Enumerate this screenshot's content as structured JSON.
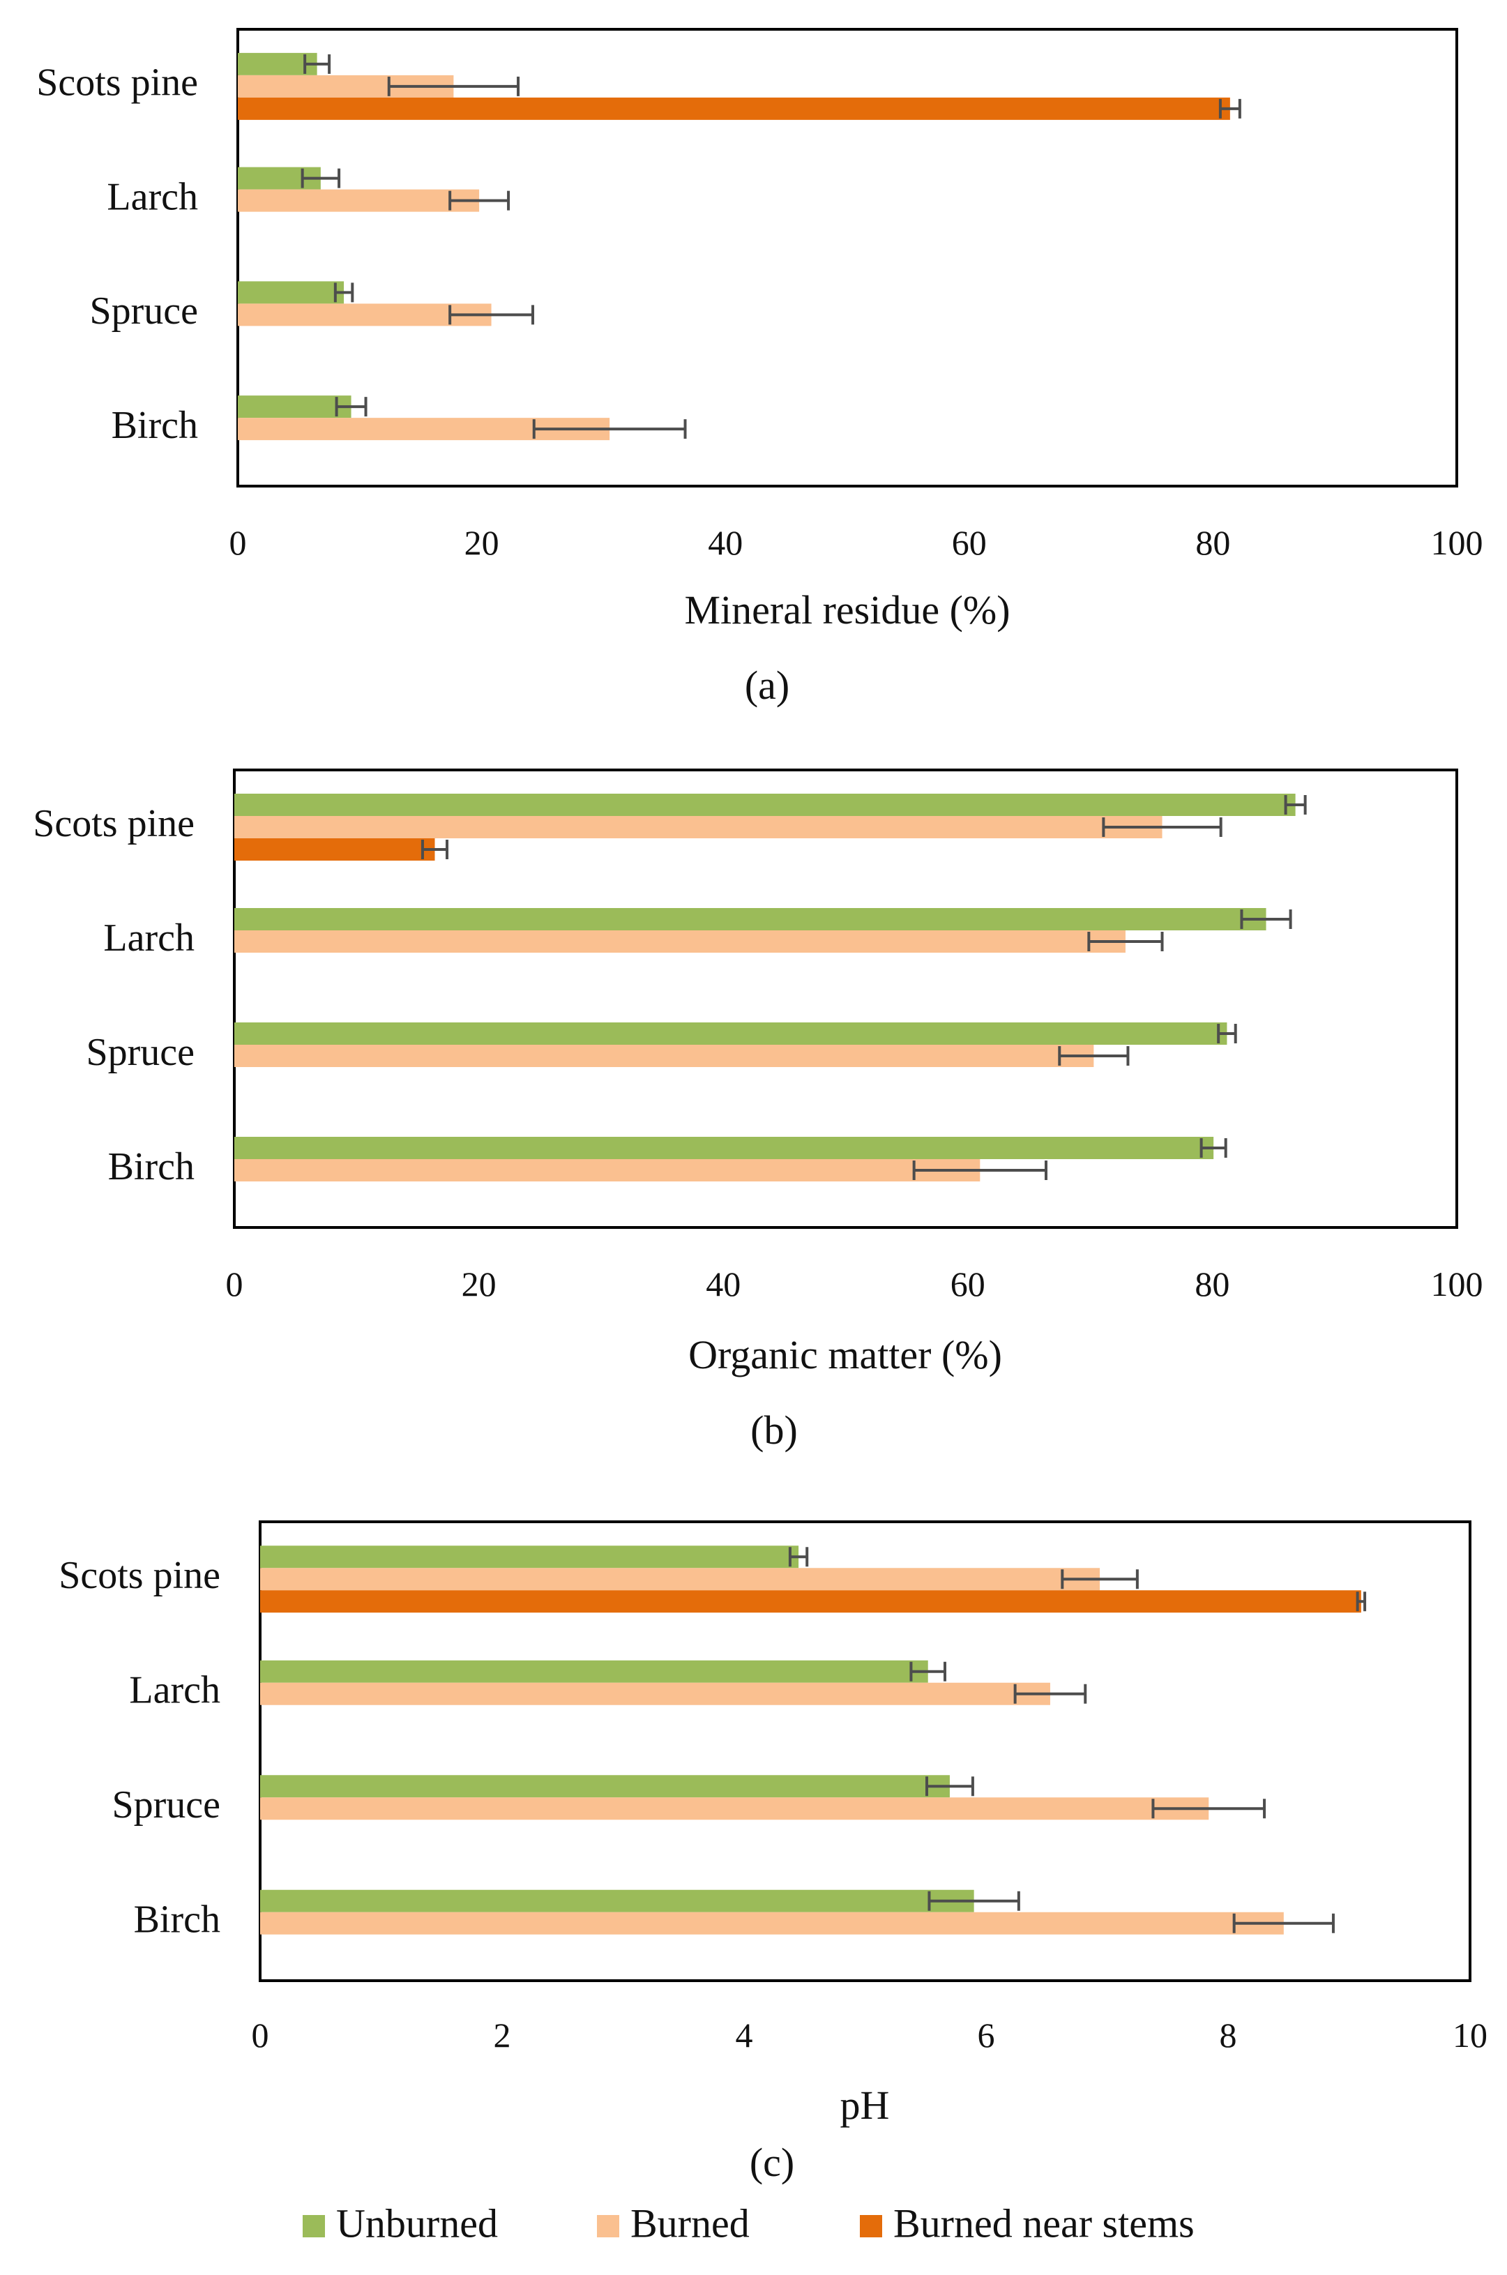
{
  "figure": {
    "legend": [
      {
        "label": "Unburned",
        "color": "#9bbb59"
      },
      {
        "label": "Burned",
        "color": "#fac090"
      },
      {
        "label": "Burned near stems",
        "color": "#e46c0a"
      }
    ]
  },
  "chart_data": [
    {
      "type": "bar",
      "orientation": "horizontal",
      "panel_label": "(a)",
      "xlabel": "Mineral residue (%)",
      "xlim": [
        0,
        100
      ],
      "ticks": [
        "0",
        "20",
        "40",
        "60",
        "80",
        "100"
      ],
      "categories": [
        "Scots pine",
        "Larch",
        "Spruce",
        "Birch"
      ],
      "series": [
        {
          "name": "Unburned",
          "values": [
            6.5,
            6.8,
            8.7,
            9.3
          ],
          "errors": [
            1.0,
            1.5,
            0.7,
            1.2
          ]
        },
        {
          "name": "Burned",
          "values": [
            17.7,
            19.8,
            20.8,
            30.5
          ],
          "errors": [
            5.3,
            2.4,
            3.4,
            6.2
          ]
        },
        {
          "name": "Burned near stems",
          "values": [
            81.4,
            null,
            null,
            null
          ],
          "errors": [
            0.8,
            null,
            null,
            null
          ]
        }
      ],
      "grid": false,
      "legend": "bottom"
    },
    {
      "type": "bar",
      "orientation": "horizontal",
      "panel_label": "(b)",
      "xlabel": "Organic matter (%)",
      "xlim": [
        0,
        100
      ],
      "ticks": [
        "0",
        "20",
        "40",
        "60",
        "80",
        "100"
      ],
      "categories": [
        "Scots pine",
        "Larch",
        "Spruce",
        "Birch"
      ],
      "series": [
        {
          "name": "Unburned",
          "values": [
            86.8,
            84.4,
            81.2,
            80.1
          ],
          "errors": [
            0.8,
            2.0,
            0.7,
            1.0
          ]
        },
        {
          "name": "Burned",
          "values": [
            75.9,
            72.9,
            70.3,
            61.0
          ],
          "errors": [
            4.8,
            3.0,
            2.8,
            5.4
          ]
        },
        {
          "name": "Burned near stems",
          "values": [
            16.4,
            null,
            null,
            null
          ],
          "errors": [
            1.0,
            null,
            null,
            null
          ]
        }
      ],
      "grid": false,
      "legend": "bottom"
    },
    {
      "type": "bar",
      "orientation": "horizontal",
      "panel_label": "(c)",
      "xlabel": "pH",
      "xlim": [
        0,
        10
      ],
      "ticks": [
        "0",
        "2",
        "4",
        "6",
        "8",
        "10"
      ],
      "categories": [
        "Scots pine",
        "Larch",
        "Spruce",
        "Birch"
      ],
      "series": [
        {
          "name": "Unburned",
          "values": [
            4.45,
            5.52,
            5.7,
            5.9
          ],
          "errors": [
            0.07,
            0.14,
            0.19,
            0.37
          ]
        },
        {
          "name": "Burned",
          "values": [
            6.94,
            6.53,
            7.84,
            8.46
          ],
          "errors": [
            0.31,
            0.29,
            0.46,
            0.41
          ]
        },
        {
          "name": "Burned near stems",
          "values": [
            9.1,
            null,
            null,
            null
          ],
          "errors": [
            0.03,
            null,
            null,
            null
          ]
        }
      ],
      "grid": false,
      "legend": "bottom"
    }
  ]
}
